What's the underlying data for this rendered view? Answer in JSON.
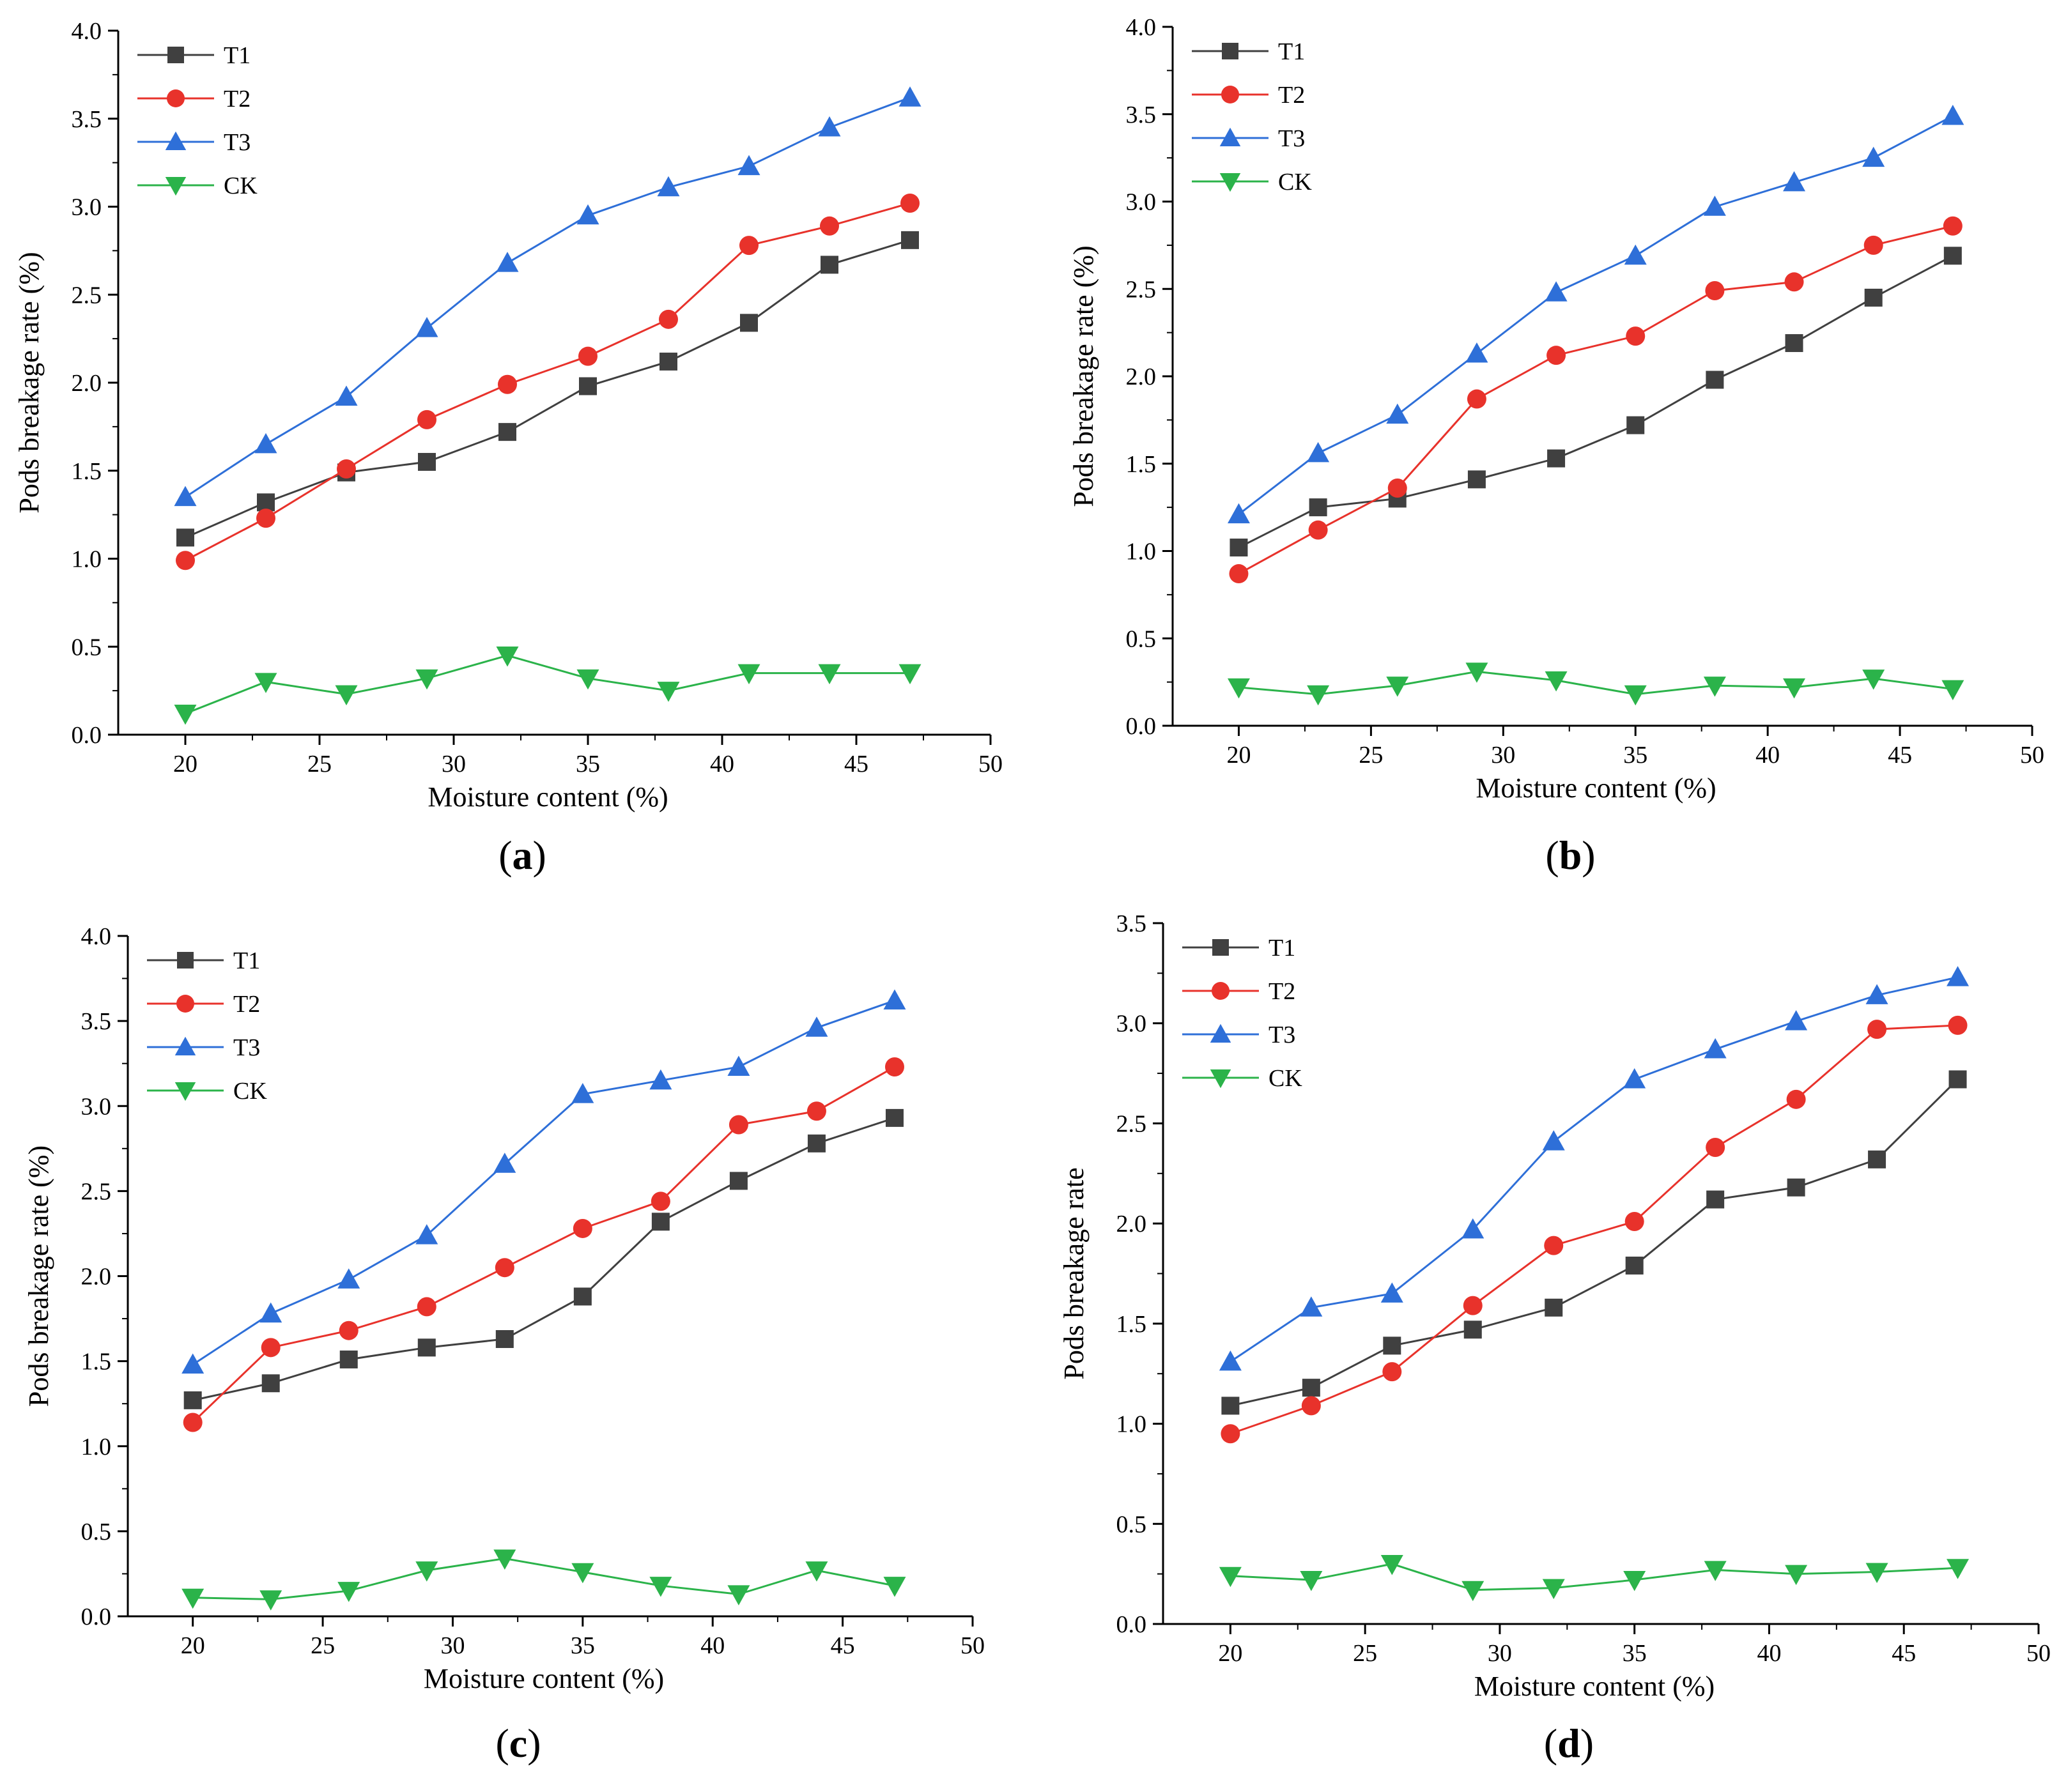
{
  "figure": {
    "panel_count": 4
  },
  "chart_data": [
    {
      "type": "line",
      "panel_label": "(a)",
      "panel_letter": "a",
      "xlabel": "Moisture content (%)",
      "ylabel": "Pods breakage rate (%)",
      "xlim": [
        17.5,
        50
      ],
      "ylim": [
        0,
        4.0
      ],
      "xticks": [
        20,
        25,
        30,
        35,
        40,
        45,
        50
      ],
      "yticks": [
        0.0,
        0.5,
        1.0,
        1.5,
        2.0,
        2.5,
        3.0,
        3.5,
        4.0
      ],
      "ytick_labels": [
        "0.0",
        "0.5",
        "1.0",
        "1.5",
        "2.0",
        "2.5",
        "3.0",
        "3.5",
        "4.0"
      ],
      "x": [
        20,
        23,
        26,
        29,
        32,
        35,
        38,
        41,
        44,
        47
      ],
      "legend": "top-left",
      "series": [
        {
          "name": "T1",
          "values": [
            1.12,
            1.32,
            1.49,
            1.55,
            1.72,
            1.98,
            2.12,
            2.34,
            2.67,
            2.81
          ]
        },
        {
          "name": "T2",
          "values": [
            0.99,
            1.23,
            1.51,
            1.79,
            1.99,
            2.15,
            2.36,
            2.78,
            2.89,
            3.02
          ]
        },
        {
          "name": "T3",
          "values": [
            1.35,
            1.65,
            1.92,
            2.31,
            2.68,
            2.95,
            3.11,
            3.23,
            3.45,
            3.62
          ]
        },
        {
          "name": "CK",
          "values": [
            0.12,
            0.3,
            0.23,
            0.32,
            0.45,
            0.32,
            0.25,
            0.35,
            0.35,
            0.35
          ]
        }
      ]
    },
    {
      "type": "line",
      "panel_label": "(b)",
      "panel_letter": "b",
      "xlabel": "Moisture content (%)",
      "ylabel": "Pods breakage rate (%)",
      "xlim": [
        17.5,
        50
      ],
      "ylim": [
        0,
        4.0
      ],
      "xticks": [
        20,
        25,
        30,
        35,
        40,
        45,
        50
      ],
      "yticks": [
        0.0,
        0.5,
        1.0,
        1.5,
        2.0,
        2.5,
        3.0,
        3.5,
        4.0
      ],
      "ytick_labels": [
        "0.0",
        "0.5",
        "1.0",
        "1.5",
        "2.0",
        "2.5",
        "3.0",
        "3.5",
        "4.0"
      ],
      "x": [
        20,
        23,
        26,
        29,
        32,
        35,
        38,
        41,
        44,
        47
      ],
      "legend": "top-left",
      "series": [
        {
          "name": "T1",
          "values": [
            1.02,
            1.25,
            1.3,
            1.41,
            1.53,
            1.72,
            1.98,
            2.19,
            2.45,
            2.69
          ]
        },
        {
          "name": "T2",
          "values": [
            0.87,
            1.12,
            1.36,
            1.87,
            2.12,
            2.23,
            2.49,
            2.54,
            2.75,
            2.86
          ]
        },
        {
          "name": "T3",
          "values": [
            1.21,
            1.56,
            1.78,
            2.13,
            2.48,
            2.69,
            2.97,
            3.11,
            3.25,
            3.49
          ]
        },
        {
          "name": "CK",
          "values": [
            0.22,
            0.18,
            0.23,
            0.31,
            0.26,
            0.18,
            0.23,
            0.22,
            0.27,
            0.21
          ]
        }
      ]
    },
    {
      "type": "line",
      "panel_label": "(c)",
      "panel_letter": "c",
      "xlabel": "Moisture content (%)",
      "ylabel": "Pods breakage rate (%)",
      "xlim": [
        17.5,
        50
      ],
      "ylim": [
        0,
        4.0
      ],
      "xticks": [
        20,
        25,
        30,
        35,
        40,
        45,
        50
      ],
      "yticks": [
        0.0,
        0.5,
        1.0,
        1.5,
        2.0,
        2.5,
        3.0,
        3.5,
        4.0
      ],
      "ytick_labels": [
        "0.0",
        "0.5",
        "1.0",
        "1.5",
        "2.0",
        "2.5",
        "3.0",
        "3.5",
        "4.0"
      ],
      "x": [
        20,
        23,
        26,
        29,
        32,
        35,
        38,
        41,
        44,
        47
      ],
      "legend": "top-left",
      "series": [
        {
          "name": "T1",
          "values": [
            1.27,
            1.37,
            1.51,
            1.58,
            1.63,
            1.88,
            2.32,
            2.56,
            2.78,
            2.93
          ]
        },
        {
          "name": "T2",
          "values": [
            1.14,
            1.58,
            1.68,
            1.82,
            2.05,
            2.28,
            2.44,
            2.89,
            2.97,
            3.23
          ]
        },
        {
          "name": "T3",
          "values": [
            1.48,
            1.78,
            1.98,
            2.24,
            2.66,
            3.07,
            3.15,
            3.23,
            3.46,
            3.62
          ]
        },
        {
          "name": "CK",
          "values": [
            0.11,
            0.1,
            0.15,
            0.27,
            0.34,
            0.26,
            0.18,
            0.13,
            0.27,
            0.18
          ]
        }
      ]
    },
    {
      "type": "line",
      "panel_label": "(d)",
      "panel_letter": "d",
      "xlabel": "Moisture content (%)",
      "ylabel": "Pods breakage rate",
      "xlim": [
        17.5,
        50
      ],
      "ylim": [
        0,
        3.5
      ],
      "xticks": [
        20,
        25,
        30,
        35,
        40,
        45,
        50
      ],
      "yticks": [
        0.0,
        0.5,
        1.0,
        1.5,
        2.0,
        2.5,
        3.0,
        3.5
      ],
      "ytick_labels": [
        "0.0",
        "0.5",
        "1.0",
        "1.5",
        "2.0",
        "2.5",
        "3.0",
        "3.5"
      ],
      "x": [
        20,
        23,
        26,
        29,
        32,
        35,
        38,
        41,
        44,
        47
      ],
      "legend": "top-left",
      "series": [
        {
          "name": "T1",
          "values": [
            1.09,
            1.18,
            1.39,
            1.47,
            1.58,
            1.79,
            2.12,
            2.18,
            2.32,
            2.72
          ]
        },
        {
          "name": "T2",
          "values": [
            0.95,
            1.09,
            1.26,
            1.59,
            1.89,
            2.01,
            2.38,
            2.62,
            2.97,
            2.99
          ]
        },
        {
          "name": "T3",
          "values": [
            1.31,
            1.58,
            1.65,
            1.97,
            2.41,
            2.72,
            2.87,
            3.01,
            3.14,
            3.23
          ]
        },
        {
          "name": "CK",
          "values": [
            0.24,
            0.22,
            0.3,
            0.17,
            0.18,
            0.22,
            0.27,
            0.25,
            0.26,
            0.28
          ]
        }
      ]
    }
  ],
  "series_styles": {
    "T1": {
      "color": "#404040",
      "marker": "square"
    },
    "T2": {
      "color": "#e8322b",
      "marker": "circle"
    },
    "T3": {
      "color": "#2e6fd8",
      "marker": "triangle-up"
    },
    "CK": {
      "color": "#2bb34a",
      "marker": "triangle-down"
    }
  },
  "style": {
    "axis_color": "#000000"
  }
}
